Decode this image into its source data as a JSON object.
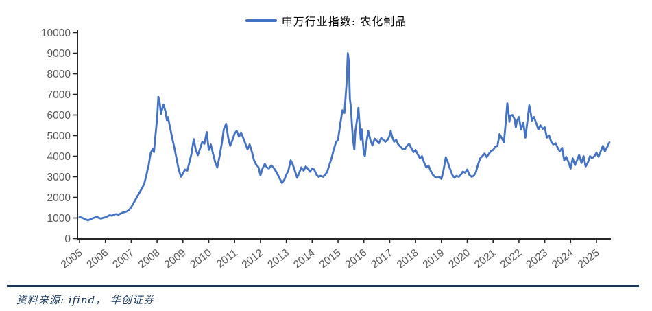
{
  "legend": {
    "label": "申万行业指数: 农化制品",
    "line_color": "#4472C4"
  },
  "footer": {
    "source_text": "资料来源: ifind， 华创证券",
    "rule_color": "#17375E"
  },
  "chart_data": {
    "type": "line",
    "title": "申万行业指数: 农化制品",
    "xlabel": "",
    "ylabel": "",
    "grid": false,
    "legend_position": "top-center",
    "xlim": [
      2005,
      2025.6
    ],
    "ylim": [
      0,
      10000
    ],
    "x_ticks": [
      2005,
      2006,
      2007,
      2008,
      2009,
      2010,
      2011,
      2012,
      2013,
      2014,
      2015,
      2016,
      2017,
      2018,
      2019,
      2020,
      2021,
      2022,
      2023,
      2024,
      2025
    ],
    "y_ticks": [
      0,
      1000,
      2000,
      3000,
      4000,
      5000,
      6000,
      7000,
      8000,
      9000,
      10000
    ],
    "axis_color": "#262626",
    "tick_label_color": "#595959",
    "series": [
      {
        "name": "申万行业指数: 农化制品",
        "color": "#4472C4",
        "points": [
          [
            2005.0,
            1050
          ],
          [
            2005.08,
            1020
          ],
          [
            2005.17,
            970
          ],
          [
            2005.25,
            920
          ],
          [
            2005.33,
            890
          ],
          [
            2005.42,
            930
          ],
          [
            2005.5,
            980
          ],
          [
            2005.58,
            1020
          ],
          [
            2005.67,
            1060
          ],
          [
            2005.75,
            1000
          ],
          [
            2005.83,
            970
          ],
          [
            2005.92,
            1010
          ],
          [
            2006.0,
            1030
          ],
          [
            2006.08,
            1080
          ],
          [
            2006.17,
            1140
          ],
          [
            2006.25,
            1110
          ],
          [
            2006.33,
            1160
          ],
          [
            2006.42,
            1190
          ],
          [
            2006.5,
            1160
          ],
          [
            2006.58,
            1210
          ],
          [
            2006.67,
            1260
          ],
          [
            2006.75,
            1290
          ],
          [
            2006.83,
            1320
          ],
          [
            2006.92,
            1400
          ],
          [
            2007.0,
            1520
          ],
          [
            2007.08,
            1700
          ],
          [
            2007.17,
            1900
          ],
          [
            2007.25,
            2080
          ],
          [
            2007.33,
            2250
          ],
          [
            2007.42,
            2450
          ],
          [
            2007.5,
            2650
          ],
          [
            2007.58,
            3050
          ],
          [
            2007.67,
            3550
          ],
          [
            2007.75,
            4150
          ],
          [
            2007.83,
            4350
          ],
          [
            2007.88,
            4200
          ],
          [
            2007.92,
            4800
          ],
          [
            2008.0,
            5800
          ],
          [
            2008.05,
            6880
          ],
          [
            2008.1,
            6600
          ],
          [
            2008.15,
            6050
          ],
          [
            2008.2,
            6300
          ],
          [
            2008.25,
            6500
          ],
          [
            2008.33,
            6150
          ],
          [
            2008.38,
            5750
          ],
          [
            2008.42,
            5900
          ],
          [
            2008.5,
            5400
          ],
          [
            2008.58,
            4900
          ],
          [
            2008.67,
            4400
          ],
          [
            2008.75,
            3900
          ],
          [
            2008.83,
            3400
          ],
          [
            2008.92,
            3000
          ],
          [
            2009.0,
            3150
          ],
          [
            2009.08,
            3350
          ],
          [
            2009.17,
            3300
          ],
          [
            2009.25,
            3700
          ],
          [
            2009.33,
            4100
          ],
          [
            2009.42,
            4830
          ],
          [
            2009.5,
            4300
          ],
          [
            2009.58,
            4050
          ],
          [
            2009.67,
            4400
          ],
          [
            2009.75,
            4700
          ],
          [
            2009.83,
            4600
          ],
          [
            2009.92,
            5170
          ],
          [
            2010.0,
            4300
          ],
          [
            2010.08,
            4570
          ],
          [
            2010.17,
            4100
          ],
          [
            2010.25,
            3700
          ],
          [
            2010.33,
            3450
          ],
          [
            2010.42,
            4000
          ],
          [
            2010.5,
            4600
          ],
          [
            2010.58,
            5300
          ],
          [
            2010.67,
            5570
          ],
          [
            2010.75,
            4900
          ],
          [
            2010.83,
            4500
          ],
          [
            2010.92,
            4800
          ],
          [
            2011.0,
            5100
          ],
          [
            2011.08,
            5230
          ],
          [
            2011.17,
            4950
          ],
          [
            2011.25,
            5150
          ],
          [
            2011.33,
            4900
          ],
          [
            2011.42,
            4600
          ],
          [
            2011.5,
            4330
          ],
          [
            2011.58,
            4570
          ],
          [
            2011.67,
            4200
          ],
          [
            2011.75,
            3800
          ],
          [
            2011.83,
            3600
          ],
          [
            2011.92,
            3470
          ],
          [
            2012.0,
            3070
          ],
          [
            2012.08,
            3400
          ],
          [
            2012.17,
            3630
          ],
          [
            2012.25,
            3450
          ],
          [
            2012.33,
            3400
          ],
          [
            2012.42,
            3550
          ],
          [
            2012.5,
            3450
          ],
          [
            2012.58,
            3300
          ],
          [
            2012.67,
            3100
          ],
          [
            2012.75,
            2900
          ],
          [
            2012.83,
            2700
          ],
          [
            2012.92,
            2850
          ],
          [
            2013.0,
            3100
          ],
          [
            2013.08,
            3300
          ],
          [
            2013.17,
            3800
          ],
          [
            2013.25,
            3600
          ],
          [
            2013.33,
            3300
          ],
          [
            2013.42,
            2950
          ],
          [
            2013.5,
            3200
          ],
          [
            2013.58,
            3450
          ],
          [
            2013.67,
            3300
          ],
          [
            2013.75,
            3500
          ],
          [
            2013.83,
            3400
          ],
          [
            2013.92,
            3250
          ],
          [
            2014.0,
            3400
          ],
          [
            2014.08,
            3350
          ],
          [
            2014.17,
            3100
          ],
          [
            2014.25,
            3000
          ],
          [
            2014.33,
            3050
          ],
          [
            2014.42,
            3000
          ],
          [
            2014.5,
            3100
          ],
          [
            2014.58,
            3230
          ],
          [
            2014.67,
            3600
          ],
          [
            2014.75,
            3900
          ],
          [
            2014.83,
            4300
          ],
          [
            2014.92,
            4670
          ],
          [
            2015.0,
            4800
          ],
          [
            2015.08,
            5500
          ],
          [
            2015.17,
            6230
          ],
          [
            2015.25,
            6100
          ],
          [
            2015.33,
            7500
          ],
          [
            2015.38,
            9000
          ],
          [
            2015.42,
            8600
          ],
          [
            2015.46,
            6800
          ],
          [
            2015.5,
            6330
          ],
          [
            2015.54,
            5470
          ],
          [
            2015.58,
            4800
          ],
          [
            2015.63,
            4330
          ],
          [
            2015.67,
            5200
          ],
          [
            2015.75,
            5900
          ],
          [
            2015.79,
            6350
          ],
          [
            2015.83,
            5600
          ],
          [
            2015.88,
            4800
          ],
          [
            2015.92,
            5300
          ],
          [
            2016.0,
            4130
          ],
          [
            2016.04,
            4000
          ],
          [
            2016.08,
            4500
          ],
          [
            2016.17,
            5230
          ],
          [
            2016.25,
            4800
          ],
          [
            2016.33,
            4520
          ],
          [
            2016.42,
            4850
          ],
          [
            2016.5,
            4750
          ],
          [
            2016.58,
            4630
          ],
          [
            2016.67,
            4880
          ],
          [
            2016.75,
            4800
          ],
          [
            2016.83,
            4700
          ],
          [
            2016.92,
            4800
          ],
          [
            2017.0,
            5000
          ],
          [
            2017.04,
            5230
          ],
          [
            2017.08,
            5000
          ],
          [
            2017.17,
            4700
          ],
          [
            2017.25,
            4800
          ],
          [
            2017.33,
            4570
          ],
          [
            2017.42,
            4450
          ],
          [
            2017.5,
            4350
          ],
          [
            2017.58,
            4330
          ],
          [
            2017.67,
            4500
          ],
          [
            2017.75,
            4600
          ],
          [
            2017.83,
            4400
          ],
          [
            2017.92,
            4200
          ],
          [
            2018.0,
            4300
          ],
          [
            2018.08,
            4100
          ],
          [
            2018.17,
            3900
          ],
          [
            2018.25,
            4000
          ],
          [
            2018.33,
            3700
          ],
          [
            2018.42,
            3450
          ],
          [
            2018.5,
            3550
          ],
          [
            2018.58,
            3300
          ],
          [
            2018.67,
            3100
          ],
          [
            2018.75,
            3000
          ],
          [
            2018.83,
            2950
          ],
          [
            2018.92,
            3000
          ],
          [
            2019.0,
            2900
          ],
          [
            2019.08,
            3300
          ],
          [
            2019.17,
            3950
          ],
          [
            2019.25,
            3700
          ],
          [
            2019.33,
            3400
          ],
          [
            2019.42,
            3100
          ],
          [
            2019.5,
            2950
          ],
          [
            2019.58,
            3050
          ],
          [
            2019.67,
            3000
          ],
          [
            2019.75,
            3100
          ],
          [
            2019.83,
            3250
          ],
          [
            2019.92,
            3200
          ],
          [
            2020.0,
            3350
          ],
          [
            2020.08,
            3100
          ],
          [
            2020.17,
            3000
          ],
          [
            2020.25,
            3050
          ],
          [
            2020.33,
            3200
          ],
          [
            2020.42,
            3600
          ],
          [
            2020.5,
            3900
          ],
          [
            2020.58,
            4000
          ],
          [
            2020.67,
            4130
          ],
          [
            2020.75,
            3950
          ],
          [
            2020.83,
            4100
          ],
          [
            2020.92,
            4250
          ],
          [
            2021.0,
            4300
          ],
          [
            2021.08,
            4450
          ],
          [
            2021.17,
            4500
          ],
          [
            2021.25,
            5070
          ],
          [
            2021.33,
            4900
          ],
          [
            2021.42,
            4670
          ],
          [
            2021.5,
            5800
          ],
          [
            2021.55,
            6570
          ],
          [
            2021.58,
            6300
          ],
          [
            2021.63,
            5670
          ],
          [
            2021.67,
            5970
          ],
          [
            2021.75,
            6000
          ],
          [
            2021.83,
            5800
          ],
          [
            2021.88,
            5400
          ],
          [
            2021.92,
            5700
          ],
          [
            2022.0,
            5900
          ],
          [
            2022.08,
            5300
          ],
          [
            2022.17,
            5630
          ],
          [
            2022.25,
            4900
          ],
          [
            2022.33,
            5700
          ],
          [
            2022.4,
            6470
          ],
          [
            2022.46,
            6070
          ],
          [
            2022.5,
            5730
          ],
          [
            2022.58,
            5900
          ],
          [
            2022.67,
            5600
          ],
          [
            2022.75,
            5300
          ],
          [
            2022.83,
            5500
          ],
          [
            2022.92,
            5330
          ],
          [
            2023.0,
            5400
          ],
          [
            2023.08,
            4900
          ],
          [
            2023.17,
            5000
          ],
          [
            2023.25,
            4700
          ],
          [
            2023.33,
            4570
          ],
          [
            2023.42,
            4630
          ],
          [
            2023.5,
            4400
          ],
          [
            2023.58,
            4230
          ],
          [
            2023.67,
            4400
          ],
          [
            2023.75,
            3800
          ],
          [
            2023.83,
            3970
          ],
          [
            2023.92,
            3700
          ],
          [
            2024.0,
            3400
          ],
          [
            2024.08,
            3900
          ],
          [
            2024.17,
            3570
          ],
          [
            2024.25,
            3800
          ],
          [
            2024.33,
            4070
          ],
          [
            2024.42,
            3670
          ],
          [
            2024.5,
            4000
          ],
          [
            2024.58,
            3500
          ],
          [
            2024.67,
            3700
          ],
          [
            2024.75,
            4000
          ],
          [
            2024.83,
            3900
          ],
          [
            2024.92,
            4000
          ],
          [
            2025.0,
            4170
          ],
          [
            2025.08,
            3970
          ],
          [
            2025.17,
            4250
          ],
          [
            2025.25,
            4500
          ],
          [
            2025.33,
            4230
          ],
          [
            2025.42,
            4450
          ],
          [
            2025.5,
            4670
          ]
        ]
      }
    ]
  }
}
